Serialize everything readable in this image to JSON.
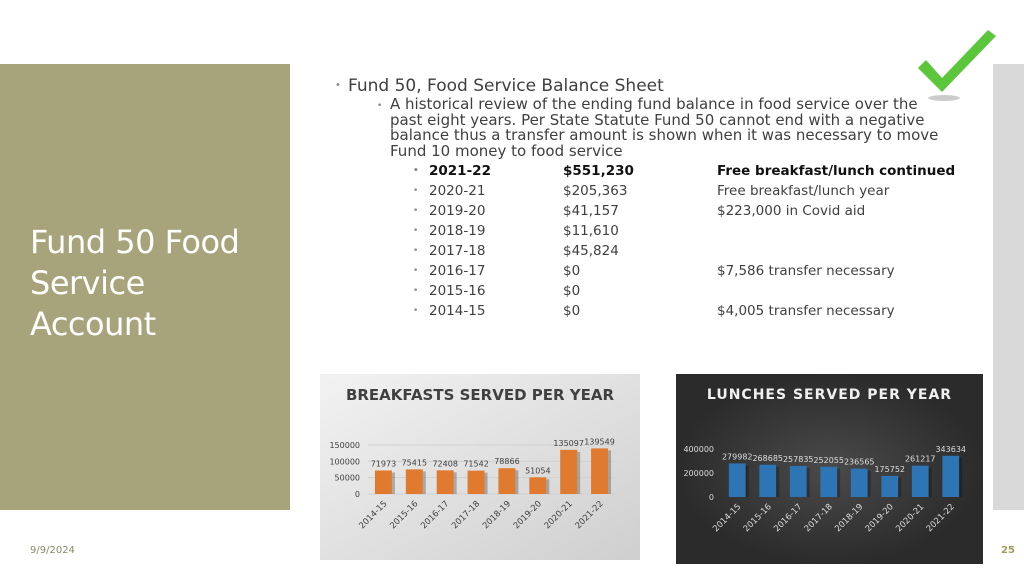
{
  "slide": {
    "title": "Fund 50 Food Service Account",
    "heading": "Fund 50, Food Service Balance Sheet",
    "description": "A historical review of the ending fund balance in food service over the past eight years.  Per State Statute Fund 50 cannot end with a negative balance thus a transfer amount is shown when it was necessary to move Fund 10 money to food service",
    "date": "9/9/2024",
    "page": "25"
  },
  "table": {
    "rows": [
      {
        "year": "2021-22",
        "amount": "$551,230",
        "note": "Free breakfast/lunch continued"
      },
      {
        "year": "2020-21",
        "amount": "$205,363",
        "note": "Free breakfast/lunch year"
      },
      {
        "year": "2019-20",
        "amount": "$41,157",
        "note": "$223,000 in Covid aid"
      },
      {
        "year": "2018-19",
        "amount": "$11,610"
      },
      {
        "year": "2017-18",
        "amount": "$45,824"
      },
      {
        "year": "2016-17",
        "amount": "$0",
        "note": "$7,586 transfer necessary"
      },
      {
        "year": "2015-16",
        "amount": "$0"
      },
      {
        "year": "2014-15",
        "amount": "$0",
        "note": "$4,005 transfer necessary"
      }
    ]
  },
  "chart_data": [
    {
      "type": "bar",
      "title": "BREAKFASTS SERVED PER YEAR",
      "categories": [
        "2014-15",
        "2015-16",
        "2016-17",
        "2017-18",
        "2018-19",
        "2019-20",
        "2020-21",
        "2021-22"
      ],
      "values": [
        71973,
        75415,
        72408,
        71542,
        78866,
        51054,
        135097,
        139549
      ],
      "color": "#e07a2e",
      "ylim": [
        0,
        150000
      ],
      "yticks": [
        0,
        50000,
        100000,
        150000
      ],
      "grid": true
    },
    {
      "type": "bar",
      "title": "LUNCHES SERVED PER YEAR",
      "categories": [
        "2014-15",
        "2015-16",
        "2016-17",
        "2017-18",
        "2018-19",
        "2019-20",
        "2020-21",
        "2021-22"
      ],
      "values": [
        279982,
        268685,
        257835,
        252055,
        236565,
        175752,
        261217,
        343634
      ],
      "color": "#2e75b6",
      "ylim": [
        0,
        400000
      ],
      "yticks": [
        0,
        200000,
        400000
      ],
      "grid": false
    }
  ]
}
